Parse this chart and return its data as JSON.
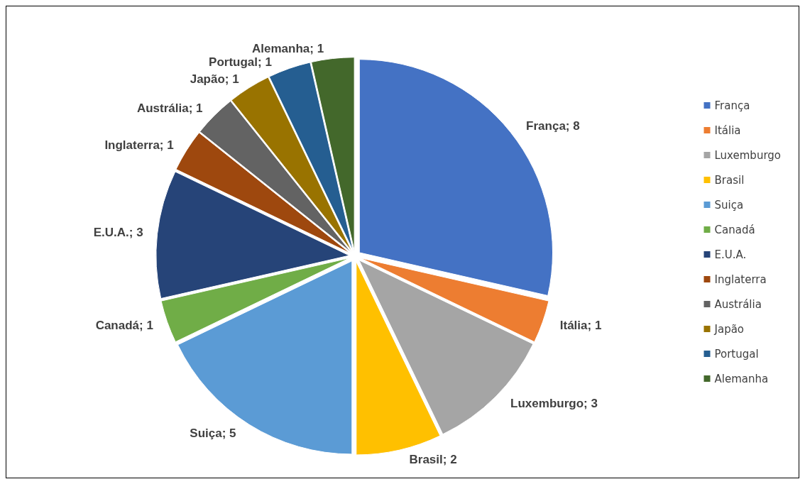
{
  "chart_data": {
    "type": "pie",
    "categories": [
      "França",
      "Itália",
      "Luxemburgo",
      "Brasil",
      "Suiça",
      "Canadá",
      "E.U.A.",
      "Inglaterra",
      "Austrália",
      "Japão",
      "Portugal",
      "Alemanha"
    ],
    "values": [
      8,
      1,
      3,
      2,
      5,
      1,
      3,
      1,
      1,
      1,
      1,
      1
    ],
    "value_labels": [
      "França; 8",
      "Itália; 1",
      "Luxemburgo; 3",
      "Brasil; 2",
      "Suiça; 5",
      "Canadá; 1",
      "E.U.A.; 3",
      "Inglaterra; 1",
      "Austrália; 1",
      "Japão; 1",
      "Portugal; 1",
      "Alemanha; 1"
    ],
    "colors": [
      "#4472c4",
      "#ed7d31",
      "#a5a5a5",
      "#ffc000",
      "#5b9bd5",
      "#70ad47",
      "#264478",
      "#9e480e",
      "#636363",
      "#997300",
      "#255e91",
      "#43682b"
    ],
    "legend": "right"
  }
}
